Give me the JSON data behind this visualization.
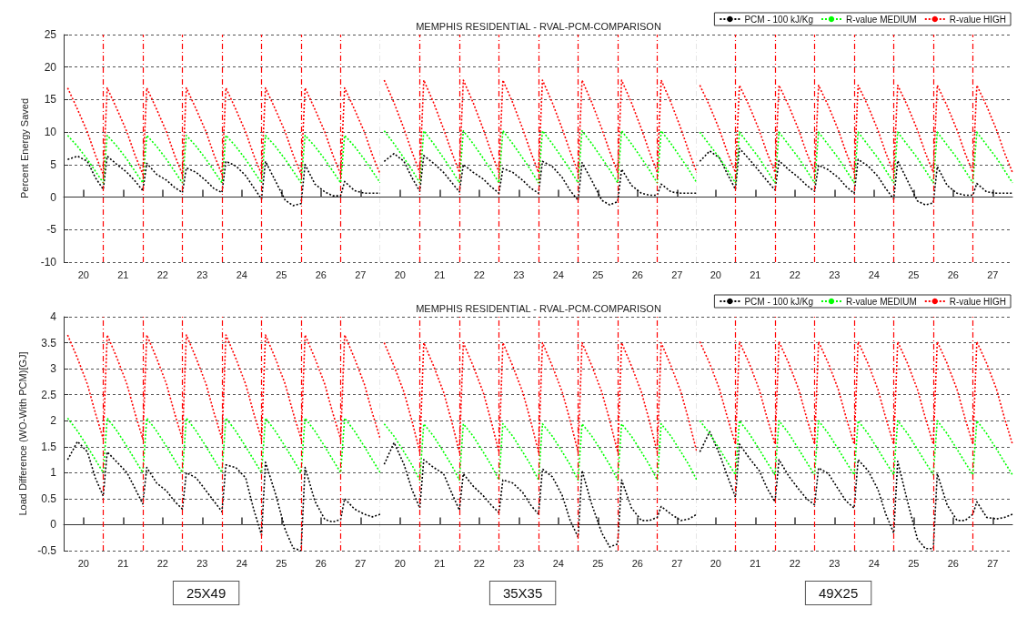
{
  "chart_data": [
    {
      "type": "line",
      "ylabel": "Percent Energy Saved",
      "xlim": [
        19.5,
        27.5
      ],
      "ylim": [
        -10,
        25
      ],
      "xticks": [
        20,
        21,
        22,
        23,
        24,
        25,
        26,
        27
      ],
      "yticks": [
        -10,
        -5,
        0,
        5,
        10,
        15,
        20,
        25
      ],
      "x": [
        19.6,
        19.85,
        20.1,
        20.3,
        20.5,
        20.6,
        20.85,
        21.1,
        21.3,
        21.5,
        21.6,
        21.85,
        22.1,
        22.3,
        22.5,
        22.6,
        22.85,
        23.1,
        23.3,
        23.5,
        23.6,
        23.85,
        24.1,
        24.3,
        24.5,
        24.6,
        24.85,
        25.1,
        25.3,
        25.5,
        25.6,
        25.85,
        26.1,
        26.3,
        26.5,
        26.6,
        26.85,
        27.1,
        27.3,
        27.5
      ],
      "series": [
        {
          "color": "#000000",
          "values": [
            5.8,
            6.3,
            5.5,
            3,
            1.2,
            6.3,
            5,
            3.8,
            2.5,
            1,
            5.2,
            3.5,
            2.6,
            1.5,
            0.7,
            4.5,
            3.8,
            2.5,
            1.3,
            0.7,
            5.5,
            4.8,
            3.3,
            1.5,
            -0.3,
            5.5,
            2.5,
            -0.5,
            -1.3,
            -1,
            5,
            2,
            0.8,
            0.2,
            0.2,
            2.4,
            1,
            0.6,
            0.6,
            0.6
          ]
        },
        {
          "color": "#00ff00",
          "values": [
            9.5,
            7.8,
            5.8,
            4,
            2.2,
            9.5,
            7.8,
            5.8,
            4,
            2.2,
            9.5,
            7.8,
            5.8,
            4,
            2.2,
            9.5,
            7.8,
            5.8,
            4,
            2.2,
            9.5,
            7.8,
            5.8,
            4,
            2.2,
            9.5,
            7.8,
            5.8,
            4,
            2.2,
            9.5,
            7.8,
            5.8,
            4,
            2.2,
            9.5,
            7.8,
            5.8,
            4,
            2.2
          ]
        },
        {
          "color": "#ff0000",
          "values": [
            16.8,
            13.5,
            10,
            6.5,
            3.5,
            16.8,
            13.5,
            10,
            6.5,
            3.5,
            16.8,
            13.5,
            10,
            6.5,
            3.5,
            16.8,
            13.5,
            10,
            6.5,
            3.5,
            16.8,
            13.5,
            10,
            6.5,
            3.5,
            16.8,
            13.5,
            10,
            6.5,
            3.5,
            16.8,
            13.5,
            10,
            6.5,
            3.5,
            16.8,
            13.5,
            10,
            6.5,
            3.5
          ]
        }
      ],
      "ref_lines": [
        {
          "axis": "x",
          "value": 20.5,
          "color": "#ff0000",
          "line_style": "dashed"
        },
        {
          "axis": "x",
          "value": 21.5,
          "color": "#ff0000",
          "line_style": "dashed"
        },
        {
          "axis": "x",
          "value": 22.5,
          "color": "#ff0000",
          "line_style": "dashed"
        },
        {
          "axis": "x",
          "value": 23.5,
          "color": "#ff0000",
          "line_style": "dashed"
        },
        {
          "axis": "x",
          "value": 24.5,
          "color": "#ff0000",
          "line_style": "dashed"
        },
        {
          "axis": "x",
          "value": 25.5,
          "color": "#ff0000",
          "line_style": "dashed"
        },
        {
          "axis": "x",
          "value": 26.5,
          "color": "#ff0000",
          "line_style": "dashed"
        },
        {
          "axis": "x",
          "value": 27.5,
          "color": "#000000",
          "line_style": "dashed"
        }
      ],
      "grid": "y",
      "marker": "none",
      "line_style": "dotted"
    },
    {
      "type": "line",
      "title": "MEMPHIS RESIDENTIAL - RVAL-PCM-COMPARISON",
      "xlim": [
        19.5,
        27.5
      ],
      "ylim": [
        -10,
        25
      ],
      "xticks": [
        20,
        21,
        22,
        23,
        24,
        25,
        26,
        27
      ],
      "yticks": [
        -10,
        -5,
        0,
        5,
        10,
        15,
        20,
        25
      ],
      "tick_labels": "x",
      "x": [
        19.6,
        19.85,
        20.1,
        20.3,
        20.5,
        20.6,
        20.85,
        21.1,
        21.3,
        21.5,
        21.6,
        21.85,
        22.1,
        22.3,
        22.5,
        22.6,
        22.85,
        23.1,
        23.3,
        23.5,
        23.6,
        23.85,
        24.1,
        24.3,
        24.5,
        24.6,
        24.85,
        25.1,
        25.3,
        25.5,
        25.6,
        25.85,
        26.1,
        26.3,
        26.5,
        26.6,
        26.85,
        27.1,
        27.3,
        27.5
      ],
      "series": [
        {
          "color": "#000000",
          "values": [
            5.5,
            6.7,
            5.5,
            3,
            0.9,
            6.4,
            5.2,
            3.8,
            2.3,
            0.8,
            5,
            3.8,
            2.8,
            1.6,
            0.6,
            4.4,
            3.8,
            2.6,
            1.4,
            0.6,
            5.5,
            4.7,
            3,
            1,
            -0.5,
            5.3,
            2.5,
            -0.5,
            -1.2,
            -0.7,
            4.3,
            1.8,
            0.6,
            0.3,
            0.3,
            2,
            0.8,
            0.6,
            0.6,
            0.6
          ]
        },
        {
          "color": "#00ff00",
          "values": [
            10.2,
            8.2,
            6,
            4.2,
            2.2,
            10.2,
            8.2,
            6,
            4.2,
            2.2,
            10.2,
            8.2,
            6,
            4.2,
            2.2,
            10.2,
            8.2,
            6,
            4.2,
            2.2,
            10.2,
            8.2,
            6,
            4.2,
            2.2,
            10.2,
            8.2,
            6,
            4.2,
            2.2,
            10.2,
            8.2,
            6,
            4.2,
            2.2,
            10.2,
            8.2,
            6,
            4.2,
            2.2
          ]
        },
        {
          "color": "#ff0000",
          "values": [
            18,
            14.5,
            10.5,
            7,
            3.8,
            18,
            14.5,
            10.5,
            7,
            3.8,
            18,
            14.5,
            10.5,
            7,
            3.8,
            18,
            14.5,
            10.5,
            7,
            3.8,
            18,
            14.5,
            10.5,
            7,
            3.8,
            18,
            14.5,
            10.5,
            7,
            3.8,
            18,
            14.5,
            10.5,
            7,
            3.8,
            18,
            14.5,
            10.5,
            7,
            3.8
          ]
        }
      ],
      "ref_lines": [
        {
          "axis": "x",
          "value": 20.5,
          "color": "#ff0000",
          "line_style": "dashed"
        },
        {
          "axis": "x",
          "value": 21.5,
          "color": "#ff0000",
          "line_style": "dashed"
        },
        {
          "axis": "x",
          "value": 22.5,
          "color": "#ff0000",
          "line_style": "dashed"
        },
        {
          "axis": "x",
          "value": 23.5,
          "color": "#ff0000",
          "line_style": "dashed"
        },
        {
          "axis": "x",
          "value": 24.5,
          "color": "#ff0000",
          "line_style": "dashed"
        },
        {
          "axis": "x",
          "value": 25.5,
          "color": "#ff0000",
          "line_style": "dashed"
        },
        {
          "axis": "x",
          "value": 26.5,
          "color": "#ff0000",
          "line_style": "dashed"
        },
        {
          "axis": "x",
          "value": 27.5,
          "color": "#000000",
          "line_style": "dashed"
        }
      ],
      "grid": "y",
      "marker": "none",
      "line_style": "dotted"
    },
    {
      "type": "line",
      "xlim": [
        19.5,
        27.5
      ],
      "ylim": [
        -10,
        25
      ],
      "xticks": [
        20,
        21,
        22,
        23,
        24,
        25,
        26,
        27
      ],
      "yticks": [
        -10,
        -5,
        0,
        5,
        10,
        15,
        20,
        25
      ],
      "tick_labels": "x",
      "x": [
        19.6,
        19.85,
        20.1,
        20.3,
        20.5,
        20.6,
        20.85,
        21.1,
        21.3,
        21.5,
        21.6,
        21.85,
        22.1,
        22.3,
        22.5,
        22.6,
        22.85,
        23.1,
        23.3,
        23.5,
        23.6,
        23.85,
        24.1,
        24.3,
        24.5,
        24.6,
        24.85,
        25.1,
        25.3,
        25.5,
        25.6,
        25.85,
        26.1,
        26.3,
        26.5,
        26.6,
        26.85,
        27.1,
        27.3,
        27.5
      ],
      "series": [
        {
          "name": "PCM - 100 kJ/Kg",
          "color": "#000000",
          "values": [
            5.5,
            7.1,
            6,
            3.5,
            1.2,
            7.5,
            5.8,
            4,
            2.5,
            1.1,
            5.6,
            4.2,
            3,
            1.8,
            0.9,
            4.9,
            4.2,
            3,
            1.6,
            0.6,
            5.8,
            4.8,
            3.2,
            1.3,
            -0.3,
            5.6,
            2.5,
            -0.6,
            -1.2,
            -0.9,
            4.7,
            1.8,
            0.6,
            0.3,
            0.3,
            2.1,
            0.8,
            0.6,
            0.6,
            0.6
          ]
        },
        {
          "name": "R-value MEDIUM",
          "color": "#00ff00",
          "values": [
            10,
            8,
            6,
            4.1,
            2.2,
            10,
            8,
            6,
            4.1,
            2.2,
            10,
            8,
            6,
            4.1,
            2.2,
            10,
            8,
            6,
            4.1,
            2.2,
            10,
            8,
            6,
            4.1,
            2.2,
            10,
            8,
            6,
            4.1,
            2.2,
            10,
            8,
            6,
            4.1,
            2.2,
            10,
            8,
            6,
            4.1,
            2.2
          ]
        },
        {
          "name": "R-value HIGH",
          "color": "#ff0000",
          "values": [
            17.2,
            14,
            10.3,
            6.8,
            3.8,
            17.2,
            14,
            10.3,
            6.8,
            3.8,
            17.2,
            14,
            10.3,
            6.8,
            3.8,
            17.2,
            14,
            10.3,
            6.8,
            3.8,
            17.2,
            14,
            10.3,
            6.8,
            3.8,
            17.2,
            14,
            10.3,
            6.8,
            3.8,
            17.2,
            14,
            10.3,
            6.8,
            3.8,
            17.2,
            14,
            10.3,
            6.8,
            3.8
          ]
        }
      ],
      "ref_lines": [
        {
          "axis": "x",
          "value": 20.5,
          "color": "#ff0000",
          "line_style": "dashed"
        },
        {
          "axis": "x",
          "value": 21.5,
          "color": "#ff0000",
          "line_style": "dashed"
        },
        {
          "axis": "x",
          "value": 22.5,
          "color": "#ff0000",
          "line_style": "dashed"
        },
        {
          "axis": "x",
          "value": 23.5,
          "color": "#ff0000",
          "line_style": "dashed"
        },
        {
          "axis": "x",
          "value": 24.5,
          "color": "#ff0000",
          "line_style": "dashed"
        },
        {
          "axis": "x",
          "value": 25.5,
          "color": "#ff0000",
          "line_style": "dashed"
        },
        {
          "axis": "x",
          "value": 26.5,
          "color": "#ff0000",
          "line_style": "dashed"
        }
      ],
      "grid": "y",
      "legend": "top right",
      "marker": "none",
      "line_style": "dotted"
    },
    {
      "type": "line",
      "ylabel": "Load Difference (WO-With PCM)[GJ]",
      "xlim": [
        19.5,
        27.5
      ],
      "ylim": [
        -0.5,
        4
      ],
      "xticks": [
        20,
        21,
        22,
        23,
        24,
        25,
        26,
        27
      ],
      "yticks": [
        -0.5,
        0,
        0.5,
        1,
        1.5,
        2,
        2.5,
        3,
        3.5,
        4
      ],
      "x": [
        19.6,
        19.85,
        20.1,
        20.3,
        20.5,
        20.6,
        20.85,
        21.1,
        21.3,
        21.5,
        21.6,
        21.85,
        22.1,
        22.3,
        22.5,
        22.6,
        22.85,
        23.1,
        23.3,
        23.5,
        23.6,
        23.85,
        24.1,
        24.3,
        24.5,
        24.6,
        24.85,
        25.1,
        25.3,
        25.5,
        25.6,
        25.85,
        26.1,
        26.3,
        26.5,
        26.6,
        26.85,
        27.1,
        27.3,
        27.5
      ],
      "series": [
        {
          "color": "#000000",
          "values": [
            1.25,
            1.6,
            1.4,
            0.9,
            0.55,
            1.4,
            1.2,
            1.0,
            0.7,
            0.4,
            1.1,
            0.8,
            0.65,
            0.45,
            0.3,
            1.0,
            0.9,
            0.65,
            0.45,
            0.25,
            1.15,
            1.1,
            0.9,
            0.3,
            -0.2,
            1.2,
            0.6,
            -0.1,
            -0.45,
            -0.5,
            1.1,
            0.45,
            0.1,
            0.05,
            0.1,
            0.5,
            0.3,
            0.2,
            0.15,
            0.2
          ]
        },
        {
          "color": "#00ff00",
          "values": [
            2.05,
            1.8,
            1.5,
            1.25,
            1.0,
            2.05,
            1.8,
            1.5,
            1.25,
            1.0,
            2.05,
            1.8,
            1.5,
            1.25,
            1.0,
            2.05,
            1.8,
            1.5,
            1.25,
            1.0,
            2.05,
            1.8,
            1.5,
            1.25,
            1.0,
            2.05,
            1.8,
            1.5,
            1.25,
            1.0,
            2.05,
            1.8,
            1.5,
            1.25,
            1.0,
            2.05,
            1.8,
            1.5,
            1.25,
            1.0
          ]
        },
        {
          "color": "#ff0000",
          "values": [
            3.65,
            3.2,
            2.7,
            2.15,
            1.65,
            3.65,
            3.2,
            2.7,
            2.15,
            1.65,
            3.65,
            3.2,
            2.7,
            2.15,
            1.65,
            3.65,
            3.2,
            2.7,
            2.15,
            1.65,
            3.65,
            3.2,
            2.7,
            2.15,
            1.65,
            3.65,
            3.2,
            2.7,
            2.15,
            1.65,
            3.65,
            3.2,
            2.7,
            2.15,
            1.65,
            3.65,
            3.2,
            2.7,
            2.15,
            1.65
          ]
        }
      ],
      "ref_lines": [
        {
          "axis": "x",
          "value": 20.5,
          "color": "#ff0000",
          "line_style": "dashed"
        },
        {
          "axis": "x",
          "value": 21.5,
          "color": "#ff0000",
          "line_style": "dashed"
        },
        {
          "axis": "x",
          "value": 22.5,
          "color": "#ff0000",
          "line_style": "dashed"
        },
        {
          "axis": "x",
          "value": 23.5,
          "color": "#ff0000",
          "line_style": "dashed"
        },
        {
          "axis": "x",
          "value": 24.5,
          "color": "#ff0000",
          "line_style": "dashed"
        },
        {
          "axis": "x",
          "value": 25.5,
          "color": "#ff0000",
          "line_style": "dashed"
        },
        {
          "axis": "x",
          "value": 26.5,
          "color": "#ff0000",
          "line_style": "dashed"
        },
        {
          "axis": "x",
          "value": 27.5,
          "color": "#000000",
          "line_style": "dashed"
        }
      ],
      "annotations": [
        "25X49"
      ],
      "grid": "y",
      "marker": "none",
      "line_style": "dotted"
    },
    {
      "type": "line",
      "title": "MEMPHIS RESIDENTIAL - RVAL-PCM-COMPARISON",
      "xlim": [
        19.5,
        27.5
      ],
      "ylim": [
        -0.5,
        4
      ],
      "xticks": [
        20,
        21,
        22,
        23,
        24,
        25,
        26,
        27
      ],
      "yticks": [
        -0.5,
        0,
        0.5,
        1,
        1.5,
        2,
        2.5,
        3,
        3.5,
        4
      ],
      "tick_labels": "x",
      "x": [
        19.6,
        19.85,
        20.1,
        20.3,
        20.5,
        20.6,
        20.85,
        21.1,
        21.3,
        21.5,
        21.6,
        21.85,
        22.1,
        22.3,
        22.5,
        22.6,
        22.85,
        23.1,
        23.3,
        23.5,
        23.6,
        23.85,
        24.1,
        24.3,
        24.5,
        24.6,
        24.85,
        25.1,
        25.3,
        25.5,
        25.6,
        25.85,
        26.1,
        26.3,
        26.5,
        26.6,
        26.85,
        27.1,
        27.3,
        27.5
      ],
      "series": [
        {
          "color": "#000000",
          "values": [
            1.16,
            1.58,
            1.16,
            0.68,
            0.32,
            1.25,
            1.1,
            0.98,
            0.62,
            0.28,
            0.98,
            0.74,
            0.56,
            0.38,
            0.23,
            0.86,
            0.8,
            0.62,
            0.38,
            0.2,
            1.07,
            0.92,
            0.56,
            0.08,
            -0.24,
            1.04,
            0.38,
            -0.16,
            -0.43,
            -0.37,
            0.86,
            0.32,
            0.08,
            0.08,
            0.14,
            0.35,
            0.2,
            0.08,
            0.11,
            0.2
          ]
        },
        {
          "color": "#00ff00",
          "values": [
            1.94,
            1.7,
            1.4,
            1.15,
            0.86,
            1.94,
            1.7,
            1.4,
            1.15,
            0.86,
            1.94,
            1.7,
            1.4,
            1.15,
            0.86,
            1.94,
            1.7,
            1.4,
            1.15,
            0.86,
            1.94,
            1.7,
            1.4,
            1.15,
            0.86,
            1.94,
            1.7,
            1.4,
            1.15,
            0.86,
            1.94,
            1.7,
            1.4,
            1.15,
            0.86,
            1.94,
            1.7,
            1.4,
            1.15,
            0.86
          ]
        },
        {
          "color": "#ff0000",
          "values": [
            3.5,
            3.05,
            2.55,
            2,
            1.4,
            3.5,
            3.05,
            2.55,
            2,
            1.4,
            3.5,
            3.05,
            2.55,
            2,
            1.4,
            3.5,
            3.05,
            2.55,
            2,
            1.4,
            3.5,
            3.05,
            2.55,
            2,
            1.4,
            3.5,
            3.05,
            2.55,
            2,
            1.4,
            3.5,
            3.05,
            2.55,
            2,
            1.4,
            3.5,
            3.05,
            2.55,
            2,
            1.4
          ]
        }
      ],
      "ref_lines": [
        {
          "axis": "x",
          "value": 20.5,
          "color": "#ff0000",
          "line_style": "dashed"
        },
        {
          "axis": "x",
          "value": 21.5,
          "color": "#ff0000",
          "line_style": "dashed"
        },
        {
          "axis": "x",
          "value": 22.5,
          "color": "#ff0000",
          "line_style": "dashed"
        },
        {
          "axis": "x",
          "value": 23.5,
          "color": "#ff0000",
          "line_style": "dashed"
        },
        {
          "axis": "x",
          "value": 24.5,
          "color": "#ff0000",
          "line_style": "dashed"
        },
        {
          "axis": "x",
          "value": 25.5,
          "color": "#ff0000",
          "line_style": "dashed"
        },
        {
          "axis": "x",
          "value": 26.5,
          "color": "#ff0000",
          "line_style": "dashed"
        },
        {
          "axis": "x",
          "value": 27.5,
          "color": "#000000",
          "line_style": "dashed"
        }
      ],
      "annotations": [
        "35X35"
      ],
      "grid": "y",
      "marker": "none",
      "line_style": "dotted"
    },
    {
      "type": "line",
      "xlim": [
        19.5,
        27.5
      ],
      "ylim": [
        -0.5,
        4
      ],
      "xticks": [
        20,
        21,
        22,
        23,
        24,
        25,
        26,
        27
      ],
      "yticks": [
        -0.5,
        0,
        0.5,
        1,
        1.5,
        2,
        2.5,
        3,
        3.5,
        4
      ],
      "tick_labels": "x",
      "x": [
        19.6,
        19.85,
        20.1,
        20.3,
        20.5,
        20.6,
        20.85,
        21.1,
        21.3,
        21.5,
        21.6,
        21.85,
        22.1,
        22.3,
        22.5,
        22.6,
        22.85,
        23.1,
        23.3,
        23.5,
        23.6,
        23.85,
        24.1,
        24.3,
        24.5,
        24.6,
        24.85,
        25.1,
        25.3,
        25.5,
        25.6,
        25.85,
        26.1,
        26.3,
        26.5,
        26.6,
        26.85,
        27.1,
        27.3,
        27.5
      ],
      "series": [
        {
          "name": "PCM - 100 kJ/Kg",
          "color": "#000000",
          "values": [
            1.4,
            1.79,
            1.35,
            0.93,
            0.53,
            1.55,
            1.28,
            1.04,
            0.7,
            0.44,
            1.25,
            0.93,
            0.68,
            0.5,
            0.38,
            1.09,
            0.98,
            0.68,
            0.45,
            0.32,
            1.25,
            1.04,
            0.68,
            0.2,
            -0.16,
            1.22,
            0.44,
            -0.28,
            -0.46,
            -0.46,
            0.98,
            0.38,
            0.08,
            0.08,
            0.2,
            0.44,
            0.14,
            0.11,
            0.14,
            0.2
          ]
        },
        {
          "name": "R-value MEDIUM",
          "color": "#00ff00",
          "values": [
            2.0,
            1.75,
            1.45,
            1.2,
            0.96,
            2.0,
            1.75,
            1.45,
            1.2,
            0.96,
            2.0,
            1.75,
            1.45,
            1.2,
            0.96,
            2.0,
            1.75,
            1.45,
            1.2,
            0.96,
            2.0,
            1.75,
            1.45,
            1.2,
            0.96,
            2.0,
            1.75,
            1.45,
            1.2,
            0.96,
            2.0,
            1.75,
            1.45,
            1.2,
            0.96,
            2.0,
            1.75,
            1.45,
            1.2,
            0.96
          ]
        },
        {
          "name": "R-value HIGH",
          "color": "#ff0000",
          "values": [
            3.52,
            3.1,
            2.6,
            2.05,
            1.55,
            3.52,
            3.1,
            2.6,
            2.05,
            1.55,
            3.52,
            3.1,
            2.6,
            2.05,
            1.55,
            3.52,
            3.1,
            2.6,
            2.05,
            1.55,
            3.52,
            3.1,
            2.6,
            2.05,
            1.55,
            3.52,
            3.1,
            2.6,
            2.05,
            1.55,
            3.52,
            3.1,
            2.6,
            2.05,
            1.55,
            3.52,
            3.1,
            2.6,
            2.05,
            1.55
          ]
        }
      ],
      "ref_lines": [
        {
          "axis": "x",
          "value": 20.5,
          "color": "#ff0000",
          "line_style": "dashed"
        },
        {
          "axis": "x",
          "value": 21.5,
          "color": "#ff0000",
          "line_style": "dashed"
        },
        {
          "axis": "x",
          "value": 22.5,
          "color": "#ff0000",
          "line_style": "dashed"
        },
        {
          "axis": "x",
          "value": 23.5,
          "color": "#ff0000",
          "line_style": "dashed"
        },
        {
          "axis": "x",
          "value": 24.5,
          "color": "#ff0000",
          "line_style": "dashed"
        },
        {
          "axis": "x",
          "value": 25.5,
          "color": "#ff0000",
          "line_style": "dashed"
        },
        {
          "axis": "x",
          "value": 26.5,
          "color": "#ff0000",
          "line_style": "dashed"
        }
      ],
      "annotations": [
        "49X25"
      ],
      "grid": "y",
      "legend": "top right",
      "marker": "none",
      "line_style": "dotted"
    }
  ]
}
